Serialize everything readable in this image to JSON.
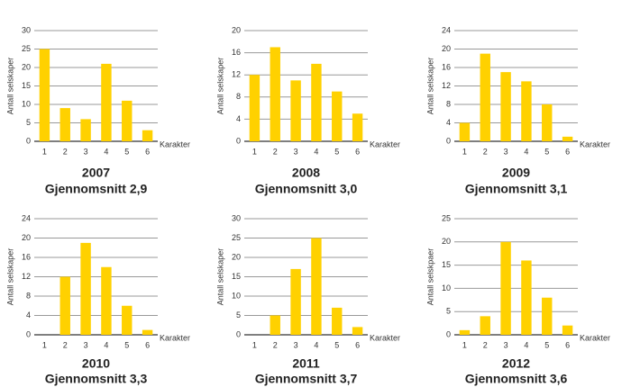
{
  "chart_data": [
    {
      "type": "bar",
      "title": "2007",
      "subtitle": "Gjennomsnitt  2,9",
      "y_label": "Antall selskaper",
      "x_label": "Karakter",
      "categories": [
        "1",
        "2",
        "3",
        "4",
        "5",
        "6"
      ],
      "values": [
        25,
        9,
        6,
        21,
        11,
        3
      ],
      "color": "#ffd100",
      "ylim": [
        0,
        30
      ],
      "yticks": [
        0,
        5,
        10,
        15,
        20,
        25,
        30
      ],
      "grid": true
    },
    {
      "type": "bar",
      "title": "2008",
      "subtitle": "Gjennomsnitt  3,0",
      "y_label": "Antall selskaper",
      "x_label": "Karakter",
      "categories": [
        "1",
        "2",
        "3",
        "4",
        "5",
        "6"
      ],
      "values": [
        12,
        17,
        11,
        14,
        9,
        5
      ],
      "color": "#ffd100",
      "ylim": [
        0,
        20
      ],
      "yticks": [
        0,
        4,
        8,
        12,
        16,
        20
      ],
      "grid": true
    },
    {
      "type": "bar",
      "title": "2009",
      "subtitle": "Gjennomsnitt 3,1",
      "y_label": "Antall selskaper",
      "x_label": "Karakter",
      "categories": [
        "1",
        "2",
        "3",
        "4",
        "5",
        "6"
      ],
      "values": [
        4,
        19,
        15,
        13,
        8,
        1
      ],
      "color": "#ffd100",
      "ylim": [
        0,
        24
      ],
      "yticks": [
        0,
        4,
        8,
        12,
        16,
        20,
        24
      ],
      "grid": true
    },
    {
      "type": "bar",
      "title": "2010",
      "subtitle": "Gjennomsnitt 3,3",
      "y_label": "Antall selskaper",
      "x_label": "Karakter",
      "categories": [
        "1",
        "2",
        "3",
        "4",
        "5",
        "6"
      ],
      "values": [
        0,
        12,
        19,
        14,
        6,
        1
      ],
      "color": "#ffd100",
      "ylim": [
        0,
        24
      ],
      "yticks": [
        0,
        4,
        8,
        12,
        16,
        20,
        24
      ],
      "grid": true
    },
    {
      "type": "bar",
      "title": "2011",
      "subtitle": "Gjennomsnitt 3,7",
      "y_label": "Antall selskaper",
      "x_label": "Karakter",
      "categories": [
        "1",
        "2",
        "3",
        "4",
        "5",
        "6"
      ],
      "values": [
        0,
        5,
        17,
        25,
        7,
        2
      ],
      "color": "#ffd100",
      "ylim": [
        0,
        30
      ],
      "yticks": [
        0,
        5,
        10,
        15,
        20,
        25,
        30
      ],
      "grid": true
    },
    {
      "type": "bar",
      "title": "2012",
      "subtitle": "Gjennomsnitt 3,6",
      "y_label": "Antall selskpaer",
      "x_label": "Karakter",
      "categories": [
        "1",
        "2",
        "3",
        "4",
        "5",
        "6"
      ],
      "values": [
        1,
        4,
        20,
        16,
        8,
        2
      ],
      "color": "#ffd100",
      "ylim": [
        0,
        25
      ],
      "yticks": [
        0,
        5,
        10,
        15,
        20,
        25
      ],
      "grid": true
    }
  ]
}
